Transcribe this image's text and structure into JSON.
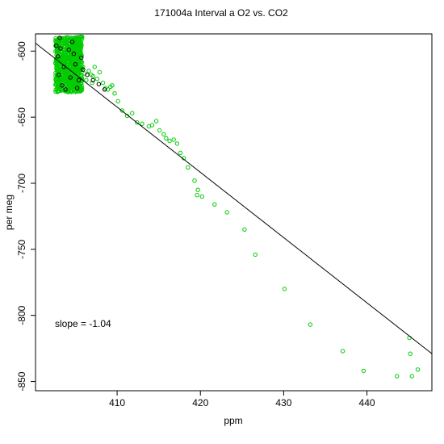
{
  "chart_data": {
    "type": "scatter",
    "title": "171004a   Interval a O2 vs. CO2",
    "xlabel": "ppm",
    "ylabel": "per meg",
    "xlim": [
      400.2,
      447.8
    ],
    "ylim": [
      -857,
      -587
    ],
    "x_ticks": [
      410,
      420,
      430,
      440
    ],
    "y_ticks": [
      -600,
      -650,
      -700,
      -750,
      -800,
      -850
    ],
    "x_tick_labels": [
      "410",
      "420",
      "430",
      "440"
    ],
    "y_tick_labels": [
      "-600",
      "-650",
      "-700",
      "-750",
      "-800",
      "-850"
    ],
    "annotation": "slope =  -1.04",
    "fit_line": {
      "slope": -1.04,
      "points": [
        [
          400.2,
          -594
        ],
        [
          447.8,
          -829
        ]
      ]
    },
    "series": [
      {
        "color": "#00cc00",
        "dense_cluster": {
          "x_range": [
            402.6,
            405.8
          ],
          "y_range": [
            -631,
            -589
          ]
        },
        "points": [
          [
            405.9,
            -612
          ],
          [
            406.1,
            -617
          ],
          [
            406.3,
            -622
          ],
          [
            406.6,
            -615
          ],
          [
            406.9,
            -618
          ],
          [
            407.1,
            -619
          ],
          [
            407.3,
            -612
          ],
          [
            407.0,
            -624
          ],
          [
            407.6,
            -621
          ],
          [
            407.9,
            -616
          ],
          [
            408.3,
            -624
          ],
          [
            408.6,
            -628
          ],
          [
            408.9,
            -629
          ],
          [
            409.2,
            -627
          ],
          [
            409.4,
            -626
          ],
          [
            409.7,
            -632
          ],
          [
            410.1,
            -638
          ],
          [
            410.6,
            -645
          ],
          [
            411.2,
            -649
          ],
          [
            411.8,
            -647
          ],
          [
            412.4,
            -654
          ],
          [
            413.0,
            -655
          ],
          [
            413.8,
            -657
          ],
          [
            414.2,
            -656
          ],
          [
            414.7,
            -653
          ],
          [
            415.1,
            -660
          ],
          [
            415.6,
            -663
          ],
          [
            415.9,
            -666
          ],
          [
            416.3,
            -668
          ],
          [
            416.8,
            -667
          ],
          [
            417.2,
            -670
          ],
          [
            417.6,
            -677
          ],
          [
            418.0,
            -681
          ],
          [
            418.5,
            -688
          ],
          [
            419.3,
            -698
          ],
          [
            419.7,
            -705
          ],
          [
            419.6,
            -709
          ],
          [
            420.2,
            -710
          ],
          [
            421.7,
            -716
          ],
          [
            423.2,
            -722
          ],
          [
            425.3,
            -735
          ],
          [
            426.6,
            -754
          ],
          [
            430.1,
            -780
          ],
          [
            433.2,
            -807
          ],
          [
            437.1,
            -827
          ],
          [
            439.6,
            -842
          ],
          [
            443.6,
            -846
          ],
          [
            445.1,
            -817
          ],
          [
            445.4,
            -846
          ],
          [
            445.2,
            -829
          ],
          [
            446.1,
            -841
          ]
        ]
      },
      {
        "color": "#000000",
        "points": [
          [
            402.7,
            -596
          ],
          [
            402.9,
            -604
          ],
          [
            403.1,
            -590
          ],
          [
            403.0,
            -618
          ],
          [
            403.4,
            -626
          ],
          [
            403.8,
            -629
          ],
          [
            404.2,
            -599
          ],
          [
            404.6,
            -593
          ],
          [
            405.0,
            -610
          ],
          [
            405.4,
            -622
          ],
          [
            405.7,
            -605
          ],
          [
            403.6,
            -612
          ],
          [
            404.4,
            -620
          ],
          [
            405.2,
            -628
          ],
          [
            403.2,
            -598
          ],
          [
            404.8,
            -602
          ],
          [
            405.9,
            -614
          ],
          [
            406.4,
            -618
          ],
          [
            407.1,
            -622
          ],
          [
            407.8,
            -625
          ],
          [
            408.5,
            -629
          ]
        ]
      }
    ]
  }
}
